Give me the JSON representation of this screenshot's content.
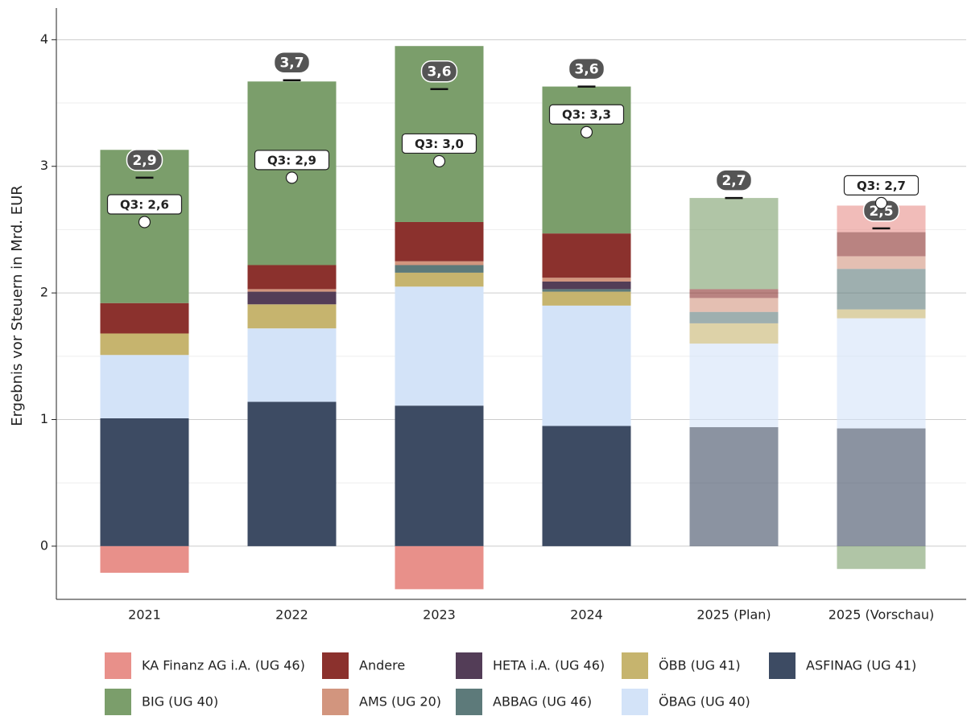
{
  "chart_data": {
    "type": "stacked_bar",
    "y_label": "Ergebnis vor Steuern in Mrd. EUR",
    "categories": [
      "2021",
      "2022",
      "2023",
      "2024",
      "2025 (Plan)",
      "2025 (Vorschau)"
    ],
    "category_opacity": [
      1,
      1,
      1,
      1,
      0.6,
      0.6
    ],
    "series": [
      {
        "name": "ASFINAG (UG 41)",
        "color": "#3d4b63",
        "values": [
          1.01,
          1.14,
          1.11,
          0.95,
          0.94,
          0.93
        ]
      },
      {
        "name": "ÖBAG (UG 40)",
        "color": "#d3e3f8",
        "values": [
          0.5,
          0.58,
          0.94,
          0.95,
          0.66,
          0.87
        ]
      },
      {
        "name": "ÖBB (UG 41)",
        "color": "#c6b46e",
        "values": [
          0.17,
          0.19,
          0.11,
          0.11,
          0.16,
          0.07
        ]
      },
      {
        "name": "ABBAG (UG 46)",
        "color": "#5d7a7a",
        "values": [
          0,
          0,
          0.06,
          0.02,
          0.09,
          0.32
        ]
      },
      {
        "name": "HETA i.A. (UG 46)",
        "color": "#533d57",
        "values": [
          0,
          0.1,
          0,
          0.06,
          0,
          0
        ]
      },
      {
        "name": "AMS (UG 20)",
        "color": "#d2957e",
        "values": [
          0,
          0.02,
          0.03,
          0.03,
          0.11,
          0.1
        ]
      },
      {
        "name": "Andere",
        "color": "#8b312d",
        "values": [
          0.24,
          0.19,
          0.31,
          0.35,
          0.07,
          0.19
        ]
      },
      {
        "name": "BIG (UG 40)",
        "color": "#7b9e6b",
        "values": [
          1.21,
          1.45,
          1.39,
          1.16,
          0.72,
          -0.18
        ]
      },
      {
        "name": "KA Finanz AG i.A. (UG 46)",
        "color": "#e8908a",
        "values": [
          -0.21,
          0,
          -0.34,
          0,
          0,
          0.21
        ]
      }
    ],
    "totals": {
      "values": [
        2.91,
        3.68,
        3.61,
        3.63,
        2.75,
        2.51
      ],
      "value_labels": [
        "2,9",
        "3,7",
        "3,6",
        "3,6",
        "2,7",
        "2,5"
      ]
    },
    "q3": {
      "values": [
        2.56,
        2.91,
        3.04,
        3.27,
        null,
        2.71
      ],
      "value_labels": [
        "Q3: 2,6",
        "Q3: 2,9",
        "Q3: 3,0",
        "Q3: 3,3",
        null,
        "Q3: 2,7"
      ]
    },
    "ylim": [
      -0.42,
      4.25
    ],
    "yticks": [
      0,
      1,
      2,
      3,
      4
    ],
    "minor_yticks": [
      0.5,
      1.5,
      2.5,
      3.5
    ],
    "grid": true
  }
}
